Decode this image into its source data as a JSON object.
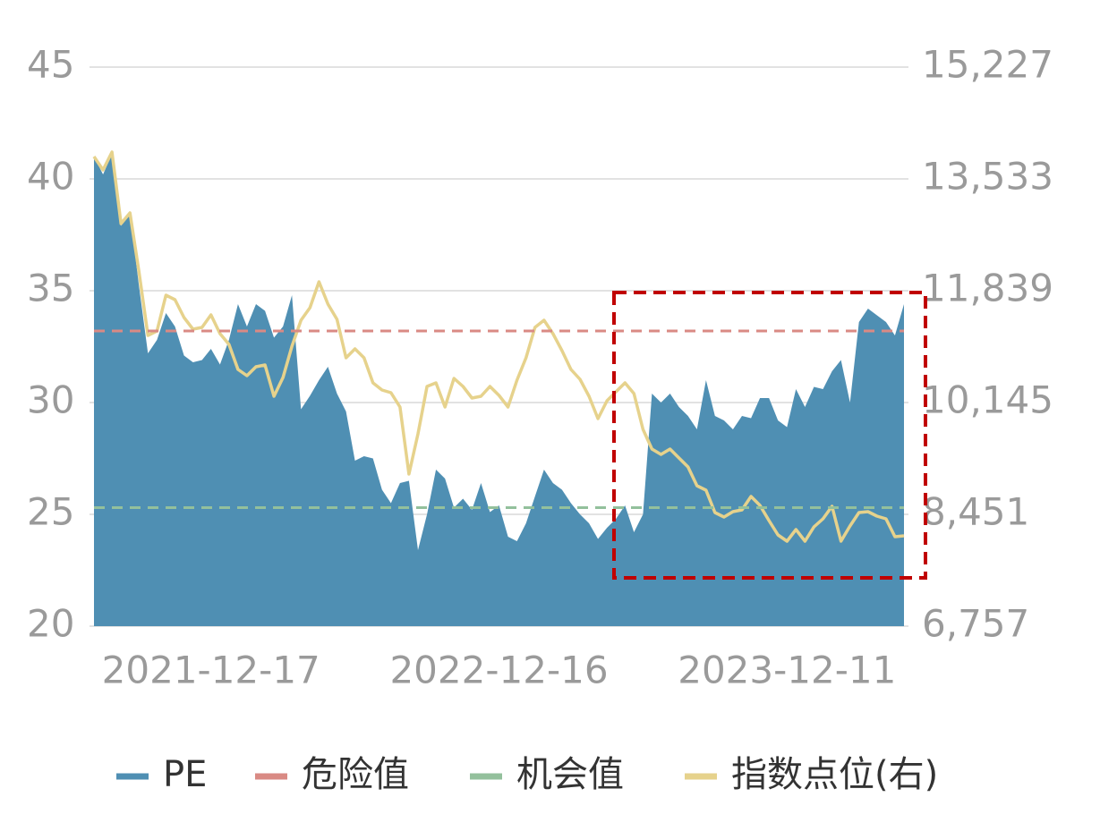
{
  "chart_data": {
    "type": "area-line",
    "categories": [
      null,
      null,
      null,
      null,
      null,
      null,
      null,
      null,
      null,
      null,
      null,
      null,
      null,
      "2021-12-17",
      null,
      null,
      null,
      null,
      null,
      null,
      null,
      null,
      null,
      null,
      null,
      null,
      null,
      null,
      null,
      null,
      null,
      null,
      null,
      null,
      null,
      null,
      null,
      null,
      null,
      null,
      null,
      null,
      null,
      null,
      null,
      "2022-12-16",
      null,
      null,
      null,
      null,
      null,
      null,
      null,
      null,
      null,
      null,
      null,
      null,
      null,
      null,
      null,
      null,
      null,
      null,
      null,
      null,
      null,
      null,
      null,
      null,
      null,
      null,
      null,
      null,
      null,
      null,
      null,
      "2023-12-11",
      null,
      null,
      null,
      null,
      null,
      null,
      null,
      null,
      null,
      null,
      null,
      null,
      null
    ],
    "series": [
      {
        "name": "PE",
        "color": "#4f8fb3",
        "values": [
          41.0,
          40.2,
          41.1,
          37.9,
          38.5,
          35.2,
          32.2,
          32.8,
          34.0,
          33.4,
          32.1,
          31.8,
          31.9,
          32.4,
          31.7,
          32.8,
          34.4,
          33.4,
          34.4,
          34.1,
          32.9,
          33.4,
          34.8,
          29.7,
          30.3,
          31.0,
          31.6,
          30.4,
          29.6,
          27.4,
          27.6,
          27.5,
          26.1,
          25.5,
          26.4,
          26.5,
          23.4,
          25.0,
          27.0,
          26.6,
          25.3,
          25.7,
          25.2,
          26.4,
          25.1,
          25.4,
          24.0,
          23.8,
          24.6,
          25.8,
          27.0,
          26.4,
          26.1,
          25.5,
          25.0,
          24.6,
          23.9,
          24.4,
          24.8,
          25.4,
          24.2,
          25.0,
          30.4,
          30.0,
          30.4,
          29.8,
          29.4,
          28.8,
          31.0,
          29.4,
          29.2,
          28.8,
          29.4,
          29.3,
          30.2,
          30.2,
          29.2,
          28.9,
          30.6,
          29.8,
          30.7,
          30.6,
          31.4,
          31.9,
          30.0,
          33.6,
          34.2,
          33.9,
          33.6,
          33.0,
          34.4
        ]
      },
      {
        "name": "指数点位(右)",
        "color": "#e6d28c",
        "axis": "y2",
        "values": [
          13872,
          13669,
          13940,
          12855,
          13018,
          12124,
          11161,
          11229,
          11771,
          11704,
          11432,
          11256,
          11283,
          11473,
          11188,
          11026,
          10646,
          10552,
          10687,
          10714,
          10240,
          10524,
          10999,
          11392,
          11581,
          11974,
          11636,
          11405,
          10823,
          10958,
          10823,
          10443,
          10335,
          10294,
          10077,
          9061,
          9671,
          10389,
          10443,
          10077,
          10511,
          10389,
          10213,
          10240,
          10389,
          10253,
          10077,
          10484,
          10823,
          11283,
          11392,
          11188,
          10931,
          10646,
          10497,
          10240,
          9901,
          10172,
          10308,
          10443,
          10280,
          9738,
          9440,
          9359,
          9440,
          9305,
          9169,
          8885,
          8817,
          8478,
          8410,
          8492,
          8519,
          8722,
          8587,
          8356,
          8139,
          8044,
          8221,
          8044,
          8261,
          8383,
          8573,
          8044,
          8275,
          8478,
          8492,
          8424,
          8383,
          8112,
          8126
        ]
      }
    ],
    "reference_lines": [
      {
        "name": "危险值",
        "color": "#d98a84",
        "value": 33.2
      },
      {
        "name": "机会值",
        "color": "#93c09c",
        "value": 25.3
      }
    ],
    "ylim": [
      20,
      45
    ],
    "yticks": [
      20,
      25,
      30,
      35,
      40,
      45
    ],
    "y2lim": [
      6757,
      15227
    ],
    "y2ticks": [
      {
        "value": 6757,
        "label": "6,757"
      },
      {
        "value": 8451,
        "label": "8,451"
      },
      {
        "value": 10145,
        "label": "10,145"
      },
      {
        "value": 11839,
        "label": "11,839"
      },
      {
        "value": 13533,
        "label": "13,533"
      },
      {
        "value": 15227,
        "label": "15,227"
      }
    ],
    "grid": true
  }
}
